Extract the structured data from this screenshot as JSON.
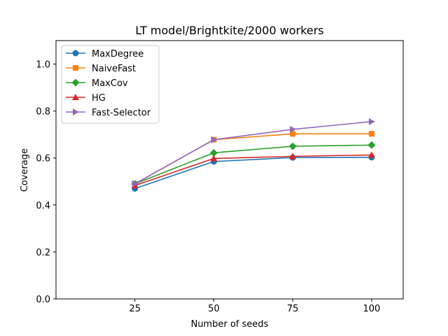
{
  "chart_data": {
    "type": "line",
    "title": "LT model/Brightkite/2000 workers",
    "xlabel": "Number of seeds",
    "ylabel": "Coverage",
    "x": [
      25,
      50,
      75,
      100
    ],
    "xlim": [
      0,
      110
    ],
    "ylim": [
      0,
      1.1
    ],
    "xticks": [
      "25",
      "50",
      "75",
      "100"
    ],
    "yticks": [
      "0.0",
      "0.2",
      "0.4",
      "0.6",
      "0.8",
      "1.0"
    ],
    "ytick_values": [
      0,
      0.2,
      0.4,
      0.6,
      0.8,
      1.0
    ],
    "grid": false,
    "legend_position": "top-left",
    "series": [
      {
        "name": "MaxDegree",
        "values": [
          0.47,
          0.585,
          0.602,
          0.603
        ],
        "color": "#1f77b4",
        "marker": "circle"
      },
      {
        "name": "NaiveFast",
        "values": [
          0.49,
          0.678,
          0.703,
          0.703
        ],
        "color": "#ff7f0e",
        "marker": "square"
      },
      {
        "name": "MaxCov",
        "values": [
          0.49,
          0.622,
          0.65,
          0.655
        ],
        "color": "#2ca02c",
        "marker": "diamond"
      },
      {
        "name": "HG",
        "values": [
          0.483,
          0.598,
          0.607,
          0.613
        ],
        "color": "#d62728",
        "marker": "triangle-up"
      },
      {
        "name": "Fast-Selector",
        "values": [
          0.49,
          0.678,
          0.722,
          0.755
        ],
        "color": "#9467bd",
        "marker": "triangle-right"
      }
    ]
  }
}
